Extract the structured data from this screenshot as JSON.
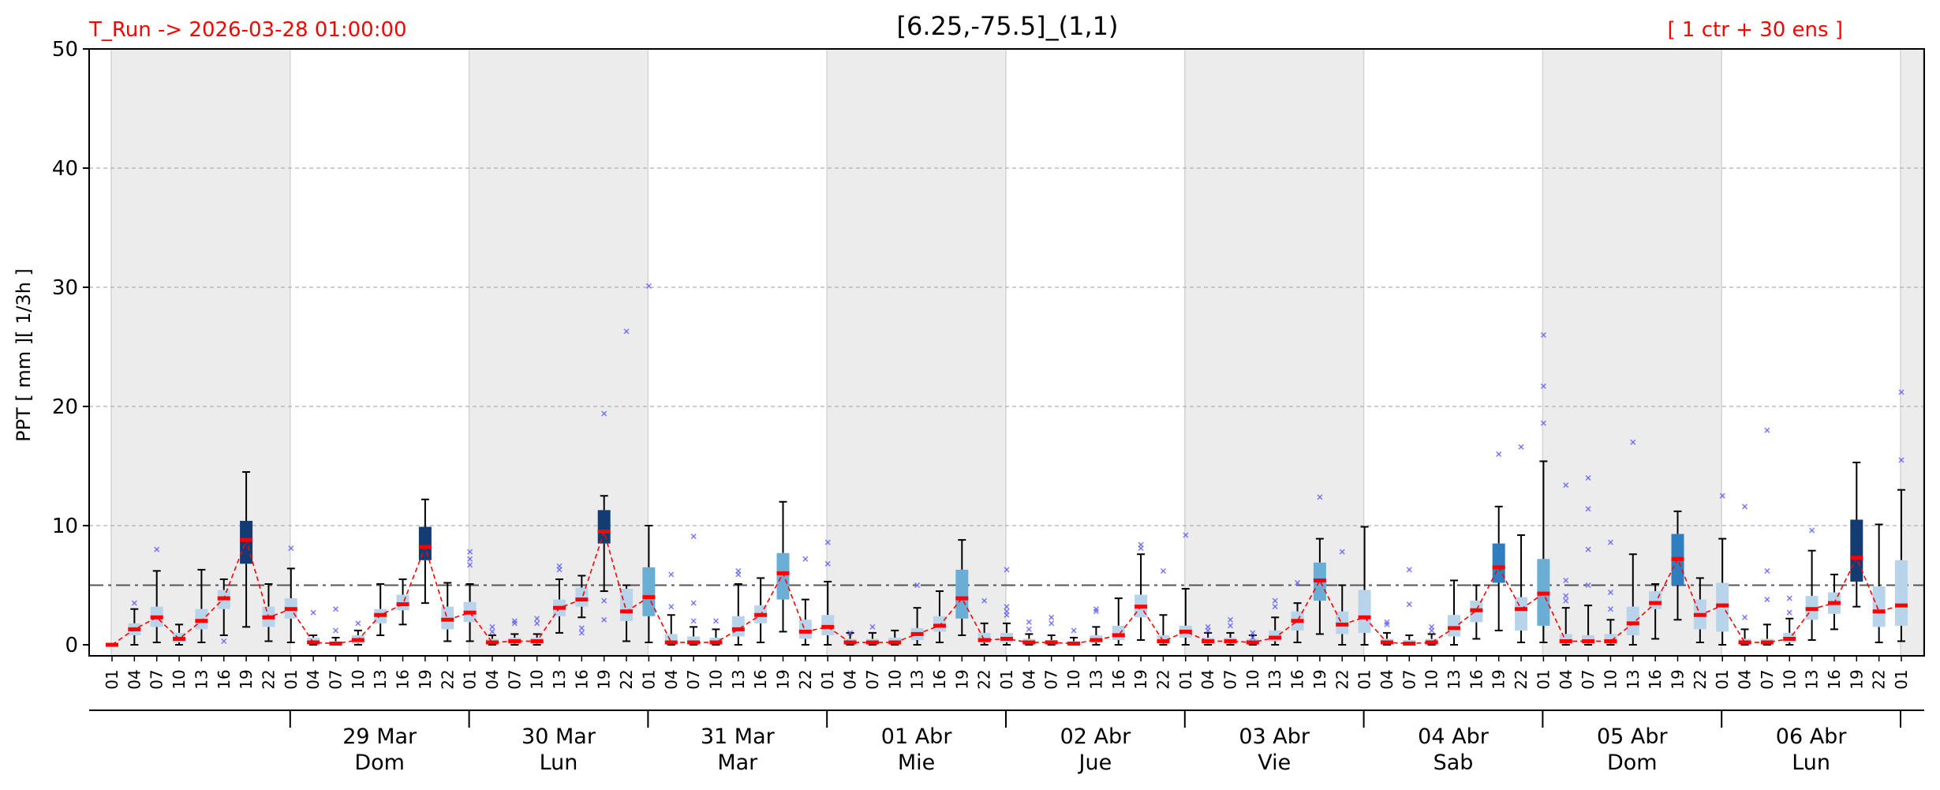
{
  "header": {
    "run_label": "T_Run -> 2026-03-28  01:00:00",
    "title": "[6.25,-75.5]_(1,1)",
    "ensemble_label": "[ 1 ctr + 30 ens ]"
  },
  "chart_data": {
    "type": "boxplot",
    "ylabel": "PPT  [ mm ][ 1/3h ]",
    "ylim": [
      0,
      50
    ],
    "yticks": [
      0,
      10,
      20,
      30,
      40,
      50
    ],
    "threshold": 5,
    "grid": "horizontal dashed",
    "hours": [
      "01",
      "04",
      "07",
      "10",
      "13",
      "16",
      "19",
      "22"
    ],
    "days": [
      {
        "date": "29 Mar",
        "weekday": "Dom"
      },
      {
        "date": "30 Mar",
        "weekday": "Lun"
      },
      {
        "date": "31 Mar",
        "weekday": "Mar"
      },
      {
        "date": "01 Abr",
        "weekday": "Mie"
      },
      {
        "date": "02 Abr",
        "weekday": "Jue"
      },
      {
        "date": "03 Abr",
        "weekday": "Vie"
      },
      {
        "date": "04 Abr",
        "weekday": "Sab"
      },
      {
        "date": "05 Abr",
        "weekday": "Dom"
      },
      {
        "date": "06 Abr",
        "weekday": "Lun"
      }
    ],
    "median_line_color": "#ff0000",
    "threshold_color": "#555555",
    "box_colors": {
      "light": "#b8d4ea",
      "mid": "#6aaed6",
      "strong": "#2f7fc0",
      "dark": "#123c73"
    },
    "steps": [
      {
        "t": "01",
        "med": 0.0,
        "q1": 0,
        "q3": 0,
        "lo": 0,
        "hi": 0,
        "fl": [],
        "c": "light"
      },
      {
        "t": "04",
        "med": 1.3,
        "q1": 0.8,
        "q3": 1.8,
        "lo": 0,
        "hi": 3.0,
        "fl": [
          3.5
        ],
        "c": "light"
      },
      {
        "t": "07",
        "med": 2.3,
        "q1": 1.5,
        "q3": 3.2,
        "lo": 0.2,
        "hi": 6.2,
        "fl": [
          8.0
        ],
        "c": "light"
      },
      {
        "t": "10",
        "med": 0.5,
        "q1": 0.2,
        "q3": 1.0,
        "lo": 0,
        "hi": 1.7,
        "fl": [],
        "c": "light"
      },
      {
        "t": "13",
        "med": 2.0,
        "q1": 1.3,
        "q3": 3.0,
        "lo": 0.2,
        "hi": 6.3,
        "fl": [],
        "c": "light"
      },
      {
        "t": "16",
        "med": 3.9,
        "q1": 3.0,
        "q3": 4.6,
        "lo": 0.8,
        "hi": 5.5,
        "fl": [
          0.3
        ],
        "c": "light"
      },
      {
        "t": "19",
        "med": 8.8,
        "q1": 6.8,
        "q3": 10.4,
        "lo": 1.5,
        "hi": 14.5,
        "fl": [],
        "c": "dark"
      },
      {
        "t": "22",
        "med": 2.3,
        "q1": 1.5,
        "q3": 3.2,
        "lo": 0.3,
        "hi": 5.1,
        "fl": [],
        "c": "light"
      },
      {
        "t": "01",
        "med": 3.0,
        "q1": 2.2,
        "q3": 3.9,
        "lo": 0.2,
        "hi": 6.4,
        "fl": [
          8.1
        ],
        "c": "light"
      },
      {
        "t": "04",
        "med": 0.2,
        "q1": 0.1,
        "q3": 0.6,
        "lo": 0,
        "hi": 0.8,
        "fl": [
          2.7
        ],
        "c": "light"
      },
      {
        "t": "07",
        "med": 0.1,
        "q1": 0,
        "q3": 0.3,
        "lo": 0,
        "hi": 0.6,
        "fl": [
          3.0,
          1.2
        ],
        "c": "light"
      },
      {
        "t": "10",
        "med": 0.4,
        "q1": 0.1,
        "q3": 0.8,
        "lo": 0,
        "hi": 1.2,
        "fl": [
          1.8
        ],
        "c": "light"
      },
      {
        "t": "13",
        "med": 2.5,
        "q1": 1.8,
        "q3": 3.0,
        "lo": 0.8,
        "hi": 5.1,
        "fl": [],
        "c": "light"
      },
      {
        "t": "16",
        "med": 3.4,
        "q1": 2.9,
        "q3": 4.2,
        "lo": 1.7,
        "hi": 5.5,
        "fl": [],
        "c": "light"
      },
      {
        "t": "19",
        "med": 8.2,
        "q1": 7.1,
        "q3": 9.9,
        "lo": 3.5,
        "hi": 12.2,
        "fl": [],
        "c": "dark"
      },
      {
        "t": "22",
        "med": 2.1,
        "q1": 1.3,
        "q3": 3.2,
        "lo": 0.3,
        "hi": 5.2,
        "fl": [],
        "c": "light"
      },
      {
        "t": "01",
        "med": 2.7,
        "q1": 1.9,
        "q3": 3.6,
        "lo": 0.3,
        "hi": 5.1,
        "fl": [
          7.8,
          7.2,
          6.7
        ],
        "c": "light"
      },
      {
        "t": "04",
        "med": 0.2,
        "q1": 0.1,
        "q3": 0.5,
        "lo": 0,
        "hi": 0.8,
        "fl": [
          1.5,
          1.1
        ],
        "c": "light"
      },
      {
        "t": "07",
        "med": 0.3,
        "q1": 0.1,
        "q3": 0.6,
        "lo": 0,
        "hi": 0.9,
        "fl": [
          2.0,
          1.8
        ],
        "c": "light"
      },
      {
        "t": "10",
        "med": 0.3,
        "q1": 0.1,
        "q3": 0.6,
        "lo": 0,
        "hi": 0.9,
        "fl": [
          2.2,
          1.8
        ],
        "c": "light"
      },
      {
        "t": "13",
        "med": 3.1,
        "q1": 2.4,
        "q3": 3.8,
        "lo": 1.0,
        "hi": 5.5,
        "fl": [
          6.6,
          6.3
        ],
        "c": "light"
      },
      {
        "t": "16",
        "med": 3.8,
        "q1": 3.2,
        "q3": 4.8,
        "lo": 2.3,
        "hi": 5.8,
        "fl": [
          1.4,
          1.0
        ],
        "c": "light"
      },
      {
        "t": "19",
        "med": 9.5,
        "q1": 8.5,
        "q3": 11.3,
        "lo": 4.5,
        "hi": 12.5,
        "fl": [
          19.4,
          3.7,
          2.1
        ],
        "c": "dark"
      },
      {
        "t": "22",
        "med": 2.8,
        "q1": 2.0,
        "q3": 4.7,
        "lo": 0.3,
        "hi": 5.0,
        "fl": [
          26.3
        ],
        "c": "light"
      },
      {
        "t": "01",
        "med": 4.0,
        "q1": 2.4,
        "q3": 6.5,
        "lo": 0.2,
        "hi": 10.0,
        "fl": [
          30.1
        ],
        "c": "mid"
      },
      {
        "t": "04",
        "med": 0.2,
        "q1": 0.1,
        "q3": 0.9,
        "lo": 0,
        "hi": 2.5,
        "fl": [
          5.9,
          3.2
        ],
        "c": "light"
      },
      {
        "t": "07",
        "med": 0.2,
        "q1": 0.1,
        "q3": 0.7,
        "lo": 0,
        "hi": 1.5,
        "fl": [
          9.1,
          3.5,
          2.0
        ],
        "c": "light"
      },
      {
        "t": "10",
        "med": 0.2,
        "q1": 0.1,
        "q3": 0.6,
        "lo": 0,
        "hi": 1.3,
        "fl": [
          2.0
        ],
        "c": "light"
      },
      {
        "t": "13",
        "med": 1.3,
        "q1": 0.7,
        "q3": 2.4,
        "lo": 0,
        "hi": 5.1,
        "fl": [
          6.2,
          5.9
        ],
        "c": "light"
      },
      {
        "t": "16",
        "med": 2.5,
        "q1": 1.8,
        "q3": 3.3,
        "lo": 0.2,
        "hi": 5.6,
        "fl": [],
        "c": "light"
      },
      {
        "t": "19",
        "med": 6.0,
        "q1": 3.8,
        "q3": 7.7,
        "lo": 1.1,
        "hi": 12.0,
        "fl": [],
        "c": "mid"
      },
      {
        "t": "22",
        "med": 1.1,
        "q1": 0.5,
        "q3": 2.1,
        "lo": 0,
        "hi": 3.8,
        "fl": [
          7.2
        ],
        "c": "light"
      },
      {
        "t": "01",
        "med": 1.5,
        "q1": 0.8,
        "q3": 2.5,
        "lo": 0,
        "hi": 5.3,
        "fl": [
          8.6,
          6.8
        ],
        "c": "light"
      },
      {
        "t": "04",
        "med": 0.2,
        "q1": 0.1,
        "q3": 0.5,
        "lo": 0,
        "hi": 1.0,
        "fl": [
          1.0
        ],
        "c": "light"
      },
      {
        "t": "07",
        "med": 0.2,
        "q1": 0.1,
        "q3": 0.5,
        "lo": 0,
        "hi": 1.0,
        "fl": [
          1.5
        ],
        "c": "light"
      },
      {
        "t": "10",
        "med": 0.2,
        "q1": 0.1,
        "q3": 0.6,
        "lo": 0,
        "hi": 1.2,
        "fl": [],
        "c": "light"
      },
      {
        "t": "13",
        "med": 0.9,
        "q1": 0.4,
        "q3": 1.4,
        "lo": 0,
        "hi": 3.1,
        "fl": [
          5.0
        ],
        "c": "light"
      },
      {
        "t": "16",
        "med": 1.6,
        "q1": 1.1,
        "q3": 2.4,
        "lo": 0.2,
        "hi": 4.5,
        "fl": [],
        "c": "light"
      },
      {
        "t": "19",
        "med": 3.9,
        "q1": 2.2,
        "q3": 6.3,
        "lo": 0.8,
        "hi": 8.8,
        "fl": [],
        "c": "mid"
      },
      {
        "t": "22",
        "med": 0.4,
        "q1": 0.2,
        "q3": 1.0,
        "lo": 0,
        "hi": 1.8,
        "fl": [
          3.7
        ],
        "c": "light"
      },
      {
        "t": "01",
        "med": 0.5,
        "q1": 0.2,
        "q3": 1.0,
        "lo": 0,
        "hi": 1.8,
        "fl": [
          6.3,
          3.2,
          2.8,
          2.5
        ],
        "c": "light"
      },
      {
        "t": "04",
        "med": 0.2,
        "q1": 0.1,
        "q3": 0.5,
        "lo": 0,
        "hi": 0.9,
        "fl": [
          1.9,
          1.3
        ],
        "c": "light"
      },
      {
        "t": "07",
        "med": 0.2,
        "q1": 0.1,
        "q3": 0.4,
        "lo": 0,
        "hi": 0.8,
        "fl": [
          2.3,
          1.8
        ],
        "c": "light"
      },
      {
        "t": "10",
        "med": 0.1,
        "q1": 0,
        "q3": 0.3,
        "lo": 0,
        "hi": 0.6,
        "fl": [
          1.2
        ],
        "c": "light"
      },
      {
        "t": "13",
        "med": 0.4,
        "q1": 0.2,
        "q3": 0.8,
        "lo": 0,
        "hi": 1.5,
        "fl": [
          3.0,
          2.8
        ],
        "c": "light"
      },
      {
        "t": "16",
        "med": 0.8,
        "q1": 0.4,
        "q3": 1.6,
        "lo": 0,
        "hi": 3.9,
        "fl": [],
        "c": "light"
      },
      {
        "t": "19",
        "med": 3.2,
        "q1": 2.3,
        "q3": 4.2,
        "lo": 0.4,
        "hi": 7.6,
        "fl": [
          8.4,
          8.1
        ],
        "c": "light"
      },
      {
        "t": "22",
        "med": 0.3,
        "q1": 0.1,
        "q3": 0.8,
        "lo": 0,
        "hi": 2.5,
        "fl": [
          6.2
        ],
        "c": "light"
      },
      {
        "t": "01",
        "med": 1.1,
        "q1": 0.6,
        "q3": 1.6,
        "lo": 0,
        "hi": 4.7,
        "fl": [
          9.2
        ],
        "c": "light"
      },
      {
        "t": "04",
        "med": 0.3,
        "q1": 0.1,
        "q3": 0.6,
        "lo": 0,
        "hi": 1.0,
        "fl": [
          1.5,
          1.2
        ],
        "c": "light"
      },
      {
        "t": "07",
        "med": 0.3,
        "q1": 0.1,
        "q3": 0.6,
        "lo": 0,
        "hi": 1.0,
        "fl": [
          2.1,
          1.6
        ],
        "c": "light"
      },
      {
        "t": "10",
        "med": 0.2,
        "q1": 0.1,
        "q3": 0.5,
        "lo": 0,
        "hi": 0.8,
        "fl": [
          1.0,
          0.6
        ],
        "c": "light"
      },
      {
        "t": "13",
        "med": 0.6,
        "q1": 0.3,
        "q3": 1.2,
        "lo": 0,
        "hi": 2.3,
        "fl": [
          3.7,
          3.2
        ],
        "c": "light"
      },
      {
        "t": "16",
        "med": 2.0,
        "q1": 1.2,
        "q3": 2.8,
        "lo": 0.2,
        "hi": 3.5,
        "fl": [
          5.2
        ],
        "c": "light"
      },
      {
        "t": "19",
        "med": 5.4,
        "q1": 3.7,
        "q3": 6.9,
        "lo": 0.9,
        "hi": 8.9,
        "fl": [
          12.4
        ],
        "c": "mid"
      },
      {
        "t": "22",
        "med": 1.7,
        "q1": 0.9,
        "q3": 2.8,
        "lo": 0,
        "hi": 5.0,
        "fl": [
          7.8
        ],
        "c": "light"
      },
      {
        "t": "01",
        "med": 2.3,
        "q1": 1.0,
        "q3": 4.6,
        "lo": 0,
        "hi": 9.9,
        "fl": [],
        "c": "light"
      },
      {
        "t": "04",
        "med": 0.2,
        "q1": 0.1,
        "q3": 0.5,
        "lo": 0,
        "hi": 1.0,
        "fl": [
          1.9,
          1.7
        ],
        "c": "light"
      },
      {
        "t": "07",
        "med": 0.1,
        "q1": 0,
        "q3": 0.4,
        "lo": 0,
        "hi": 0.8,
        "fl": [
          6.3,
          3.4
        ],
        "c": "light"
      },
      {
        "t": "10",
        "med": 0.2,
        "q1": 0.1,
        "q3": 0.5,
        "lo": 0,
        "hi": 0.9,
        "fl": [
          1.5,
          1.2
        ],
        "c": "light"
      },
      {
        "t": "13",
        "med": 1.4,
        "q1": 0.7,
        "q3": 2.5,
        "lo": 0,
        "hi": 5.4,
        "fl": [],
        "c": "light"
      },
      {
        "t": "16",
        "med": 2.9,
        "q1": 1.9,
        "q3": 3.7,
        "lo": 0.5,
        "hi": 5.0,
        "fl": [],
        "c": "light"
      },
      {
        "t": "19",
        "med": 6.5,
        "q1": 5.2,
        "q3": 8.5,
        "lo": 1.2,
        "hi": 11.6,
        "fl": [
          16.0
        ],
        "c": "strong"
      },
      {
        "t": "22",
        "med": 3.0,
        "q1": 1.2,
        "q3": 4.0,
        "lo": 0.2,
        "hi": 9.2,
        "fl": [
          16.6
        ],
        "c": "light"
      },
      {
        "t": "01",
        "med": 4.3,
        "q1": 1.6,
        "q3": 7.2,
        "lo": 0.2,
        "hi": 15.4,
        "fl": [
          26.0,
          21.7,
          18.6
        ],
        "c": "mid"
      },
      {
        "t": "04",
        "med": 0.3,
        "q1": 0.1,
        "q3": 0.9,
        "lo": 0,
        "hi": 3.1,
        "fl": [
          13.4,
          5.4,
          4.1,
          3.7
        ],
        "c": "light"
      },
      {
        "t": "07",
        "med": 0.3,
        "q1": 0.1,
        "q3": 0.8,
        "lo": 0,
        "hi": 3.3,
        "fl": [
          14.0,
          11.4,
          8.0,
          5.0
        ],
        "c": "light"
      },
      {
        "t": "10",
        "med": 0.3,
        "q1": 0.1,
        "q3": 0.9,
        "lo": 0,
        "hi": 2.1,
        "fl": [
          8.6,
          4.4,
          3.0
        ],
        "c": "light"
      },
      {
        "t": "13",
        "med": 1.8,
        "q1": 0.8,
        "q3": 3.2,
        "lo": 0,
        "hi": 7.6,
        "fl": [
          17.0
        ],
        "c": "light"
      },
      {
        "t": "16",
        "med": 3.5,
        "q1": 3.0,
        "q3": 4.5,
        "lo": 0.5,
        "hi": 5.1,
        "fl": [],
        "c": "light"
      },
      {
        "t": "19",
        "med": 7.2,
        "q1": 5.0,
        "q3": 9.3,
        "lo": 2.1,
        "hi": 11.2,
        "fl": [],
        "c": "strong"
      },
      {
        "t": "22",
        "med": 2.5,
        "q1": 1.3,
        "q3": 3.8,
        "lo": 0.2,
        "hi": 5.6,
        "fl": [],
        "c": "light"
      },
      {
        "t": "01",
        "med": 3.3,
        "q1": 1.1,
        "q3": 5.2,
        "lo": 0,
        "hi": 8.9,
        "fl": [
          12.5
        ],
        "c": "light"
      },
      {
        "t": "04",
        "med": 0.2,
        "q1": 0.1,
        "q3": 0.5,
        "lo": 0,
        "hi": 1.3,
        "fl": [
          11.6,
          2.3
        ],
        "c": "light"
      },
      {
        "t": "07",
        "med": 0.2,
        "q1": 0.1,
        "q3": 0.5,
        "lo": 0,
        "hi": 1.7,
        "fl": [
          18.0,
          6.2,
          3.8
        ],
        "c": "light"
      },
      {
        "t": "10",
        "med": 0.5,
        "q1": 0.2,
        "q3": 1.0,
        "lo": 0,
        "hi": 2.2,
        "fl": [
          3.9,
          2.7
        ],
        "c": "light"
      },
      {
        "t": "13",
        "med": 3.0,
        "q1": 2.1,
        "q3": 4.1,
        "lo": 0.4,
        "hi": 7.9,
        "fl": [
          9.6
        ],
        "c": "light"
      },
      {
        "t": "16",
        "med": 3.5,
        "q1": 2.6,
        "q3": 4.4,
        "lo": 1.3,
        "hi": 5.9,
        "fl": [],
        "c": "light"
      },
      {
        "t": "19",
        "med": 7.3,
        "q1": 5.3,
        "q3": 10.5,
        "lo": 3.2,
        "hi": 15.3,
        "fl": [],
        "c": "dark"
      },
      {
        "t": "22",
        "med": 2.8,
        "q1": 1.5,
        "q3": 4.9,
        "lo": 0.2,
        "hi": 10.1,
        "fl": [],
        "c": "light"
      },
      {
        "t": "01",
        "med": 3.3,
        "q1": 1.6,
        "q3": 7.1,
        "lo": 0.3,
        "hi": 13.0,
        "fl": [
          21.2,
          15.5
        ],
        "c": "light"
      }
    ]
  }
}
